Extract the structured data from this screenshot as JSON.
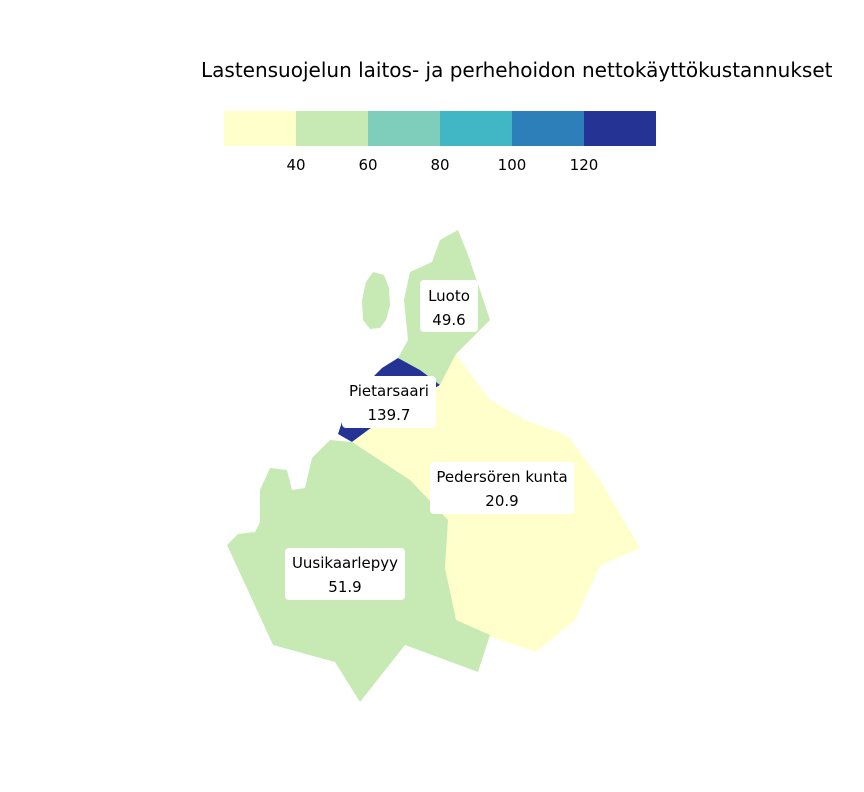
{
  "chart_data": {
    "type": "choropleth",
    "title": "Lastensuojelun laitos- ja perhehoidon nettokäyttökustannukset",
    "legend": {
      "placement": "top",
      "bins": [
        {
          "to": 40,
          "color": "#ffffcc"
        },
        {
          "from": 40,
          "to": 60,
          "color": "#c7e9b4"
        },
        {
          "from": 60,
          "to": 80,
          "color": "#7fcdbb"
        },
        {
          "from": 80,
          "to": 100,
          "color": "#41b6c4"
        },
        {
          "from": 100,
          "to": 120,
          "color": "#2c7fb8"
        },
        {
          "from": 120,
          "color": "#253494"
        }
      ],
      "ticks": [
        "40",
        "60",
        "80",
        "100",
        "120"
      ]
    },
    "regions": [
      {
        "name": "Luoto",
        "value": 49.6,
        "value_label": "49.6"
      },
      {
        "name": "Pietarsaari",
        "value": 139.7,
        "value_label": "139.7"
      },
      {
        "name": "Pedersören kunta",
        "value": 20.9,
        "value_label": "20.9"
      },
      {
        "name": "Uusikaarlepyy",
        "value": 51.9,
        "value_label": "51.9"
      }
    ]
  }
}
